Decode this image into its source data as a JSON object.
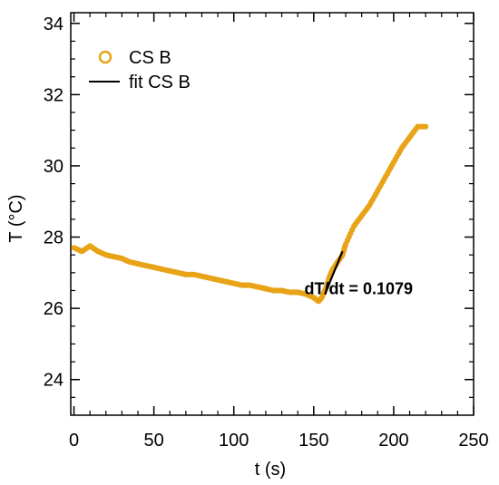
{
  "chart_data": {
    "type": "scatter",
    "xlabel": "t (s)",
    "ylabel": "T (°C)",
    "xlim": [
      -2,
      250
    ],
    "ylim": [
      23,
      34.3
    ],
    "x_ticks": [
      0,
      50,
      100,
      150,
      200,
      250
    ],
    "y_ticks": [
      24,
      26,
      28,
      30,
      32,
      34
    ],
    "grid": false,
    "legend_position": "top-left",
    "series": [
      {
        "name": "CS B",
        "marker": "open-circle",
        "color": "#E8A317",
        "x": [
          0,
          5,
          10,
          15,
          20,
          25,
          30,
          35,
          40,
          45,
          50,
          55,
          60,
          65,
          70,
          75,
          80,
          85,
          90,
          95,
          100,
          105,
          110,
          115,
          120,
          125,
          130,
          135,
          140,
          145,
          150,
          153,
          155,
          158,
          160,
          162,
          165,
          168,
          170,
          175,
          180,
          185,
          190,
          195,
          200,
          205,
          210,
          215,
          220
        ],
        "y": [
          27.7,
          27.6,
          27.75,
          27.6,
          27.5,
          27.45,
          27.4,
          27.3,
          27.25,
          27.2,
          27.15,
          27.1,
          27.05,
          27.0,
          26.95,
          26.95,
          26.9,
          26.85,
          26.8,
          26.75,
          26.7,
          26.65,
          26.65,
          26.6,
          26.55,
          26.5,
          26.5,
          26.45,
          26.45,
          26.4,
          26.3,
          26.2,
          26.3,
          26.6,
          26.9,
          27.1,
          27.3,
          27.5,
          27.8,
          28.3,
          28.6,
          28.9,
          29.3,
          29.7,
          30.1,
          30.5,
          30.8,
          31.1,
          31.1
        ]
      },
      {
        "name": "fit CS B",
        "type": "line",
        "color": "#000000",
        "x": [
          157,
          168
        ],
        "y": [
          26.4,
          27.6
        ]
      }
    ],
    "annotations": [
      {
        "text": "dT/dt = 0.1079",
        "x": 186,
        "y": 26.8
      }
    ]
  }
}
